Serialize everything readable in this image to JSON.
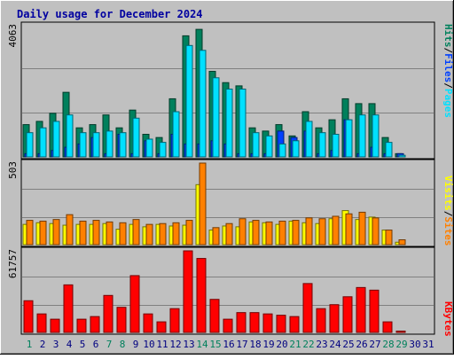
{
  "title": "Daily usage for December 2024",
  "colors": {
    "background": "#C0C0C0",
    "title_text": "#0000A0",
    "hits": "#00805C",
    "files": "#0040FF",
    "pages": "#00E0FF",
    "visits": "#FFFF00",
    "sites": "#FF8000",
    "kbytes": "#FF0000",
    "weekend_day": "#00805C",
    "weekday": "#000080"
  },
  "chart_data": [
    {
      "type": "bar",
      "title": "Daily usage for December 2024",
      "max_label": "4063",
      "ylim": [
        0,
        4063
      ],
      "legend": [
        "Pages",
        "Files",
        "Hits"
      ],
      "legend_colors": [
        "#00E0FF",
        "#0040FF",
        "#00805C"
      ],
      "categories": [
        "1",
        "2",
        "3",
        "4",
        "5",
        "6",
        "7",
        "8",
        "9",
        "10",
        "11",
        "12",
        "13",
        "14",
        "15",
        "16",
        "17",
        "18",
        "19",
        "20",
        "21",
        "22",
        "23",
        "24",
        "25",
        "26",
        "27",
        "28",
        "29",
        "30",
        "31"
      ],
      "series": [
        {
          "name": "Hits",
          "values": [
            1000,
            1100,
            1350,
            2000,
            900,
            1000,
            1300,
            900,
            1450,
            700,
            600,
            1800,
            3750,
            3950,
            2650,
            2300,
            2200,
            900,
            800,
            1000,
            650,
            1400,
            900,
            1150,
            1800,
            1650,
            1650,
            600,
            100,
            0,
            0
          ]
        },
        {
          "name": "Files",
          "values": [
            100,
            100,
            200,
            300,
            400,
            600,
            100,
            700,
            100,
            500,
            100,
            700,
            400,
            400,
            500,
            400,
            100,
            100,
            100,
            800,
            600,
            800,
            100,
            200,
            1150,
            100,
            300,
            100,
            100,
            0,
            0
          ]
        },
        {
          "name": "Pages",
          "values": [
            750,
            900,
            1100,
            1300,
            750,
            750,
            800,
            750,
            1200,
            550,
            450,
            1400,
            3450,
            3300,
            2450,
            2100,
            2100,
            750,
            650,
            400,
            500,
            1100,
            750,
            700,
            1150,
            1300,
            1300,
            450,
            50,
            0,
            0
          ]
        }
      ]
    },
    {
      "type": "bar",
      "max_label": "503",
      "ylim": [
        0,
        503
      ],
      "legend": [
        "Sites",
        "Visits"
      ],
      "legend_colors": [
        "#FF8000",
        "#FFFF00"
      ],
      "categories": [
        "1",
        "2",
        "3",
        "4",
        "5",
        "6",
        "7",
        "8",
        "9",
        "10",
        "11",
        "12",
        "13",
        "14",
        "15",
        "16",
        "17",
        "18",
        "19",
        "20",
        "21",
        "22",
        "23",
        "24",
        "25",
        "26",
        "27",
        "28",
        "29",
        "30",
        "31"
      ],
      "series": [
        {
          "name": "Visits",
          "values": [
            125,
            135,
            130,
            120,
            125,
            125,
            130,
            95,
            125,
            110,
            125,
            115,
            120,
            370,
            90,
            115,
            110,
            140,
            135,
            125,
            145,
            135,
            130,
            160,
            210,
            155,
            170,
            90,
            15,
            0,
            0
          ]
        },
        {
          "name": "Sites",
          "values": [
            150,
            145,
            155,
            185,
            145,
            150,
            140,
            135,
            155,
            125,
            130,
            135,
            150,
            503,
            105,
            130,
            160,
            150,
            140,
            145,
            150,
            165,
            160,
            175,
            190,
            200,
            165,
            90,
            30,
            0,
            0
          ]
        }
      ]
    },
    {
      "type": "bar",
      "max_label": "61757",
      "ylim": [
        0,
        61757
      ],
      "legend": [
        "KBytes"
      ],
      "legend_colors": [
        "#FF0000"
      ],
      "categories": [
        "1",
        "2",
        "3",
        "4",
        "5",
        "6",
        "7",
        "8",
        "9",
        "10",
        "11",
        "12",
        "13",
        "14",
        "15",
        "16",
        "17",
        "18",
        "19",
        "20",
        "21",
        "22",
        "23",
        "24",
        "25",
        "26",
        "27",
        "28",
        "29",
        "30",
        "31"
      ],
      "series": [
        {
          "name": "KBytes",
          "values": [
            24000,
            14000,
            10000,
            36000,
            10000,
            12000,
            28000,
            19000,
            43000,
            14000,
            8000,
            18000,
            61757,
            56000,
            25000,
            10000,
            15000,
            15000,
            14000,
            13000,
            12000,
            37000,
            18000,
            21000,
            27000,
            34000,
            32000,
            8000,
            1000,
            0,
            0
          ]
        }
      ]
    }
  ]
}
